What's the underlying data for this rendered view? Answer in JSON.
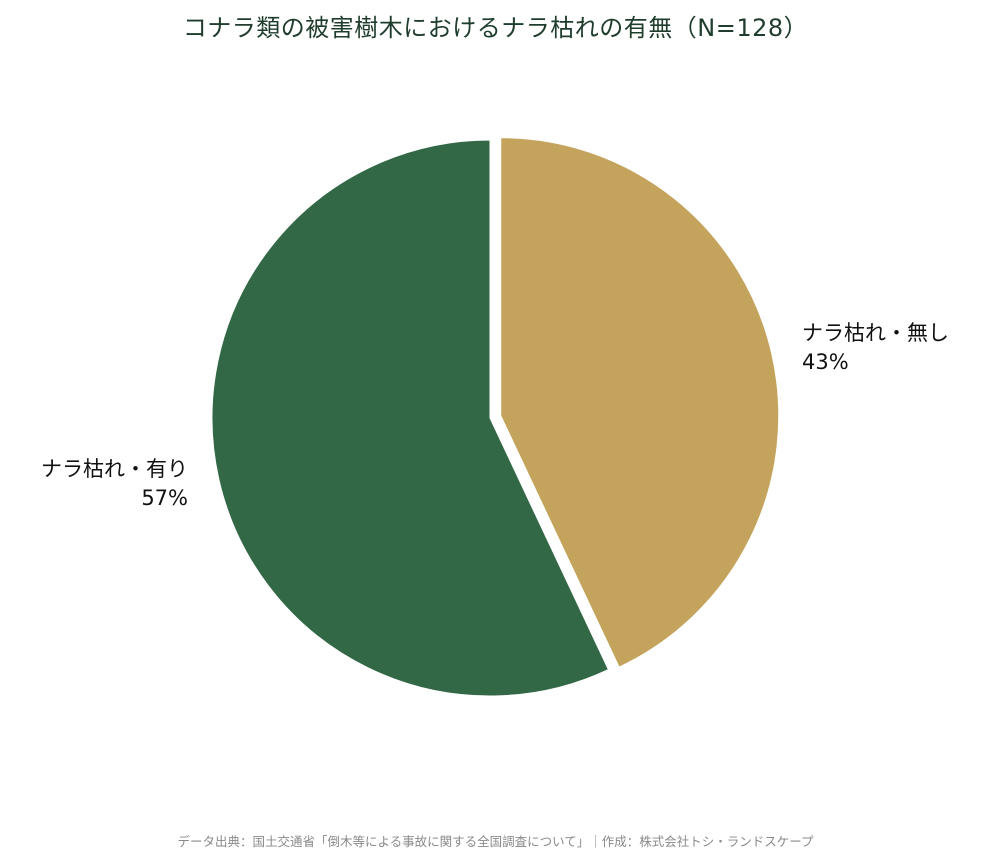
{
  "title": "コナラ類の被害樹木におけるナラ枯れの有無（N=128）",
  "source": "データ出典：国土交通省「倒木等による事故に関する全国調査について」｜作成：株式会社トシ・ランドスケープ",
  "slices": [
    {
      "label": "ナラ枯れ・無し",
      "pct_label": "43%",
      "value": 43,
      "color": "#c4a35c",
      "exploded": true
    },
    {
      "label": "ナラ枯れ・有り",
      "pct_label": "57%",
      "value": 57,
      "color": "#326846",
      "exploded": false
    }
  ],
  "chart_data": {
    "type": "pie",
    "title": "コナラ類の被害樹木におけるナラ枯れの有無（N=128）",
    "categories": [
      "ナラ枯れ・無し",
      "ナラ枯れ・有り"
    ],
    "values": [
      43,
      57
    ],
    "units": "%",
    "n": 128,
    "colors": [
      "#c4a35c",
      "#326846"
    ],
    "start_angle": "12 o'clock, clockwise",
    "exploded": [
      "ナラ枯れ・無し"
    ],
    "legend": "none (direct labels)",
    "source": "データ出典：国土交通省「倒木等による事故に関する全国調査について」｜作成：株式会社トシ・ランドスケープ"
  }
}
